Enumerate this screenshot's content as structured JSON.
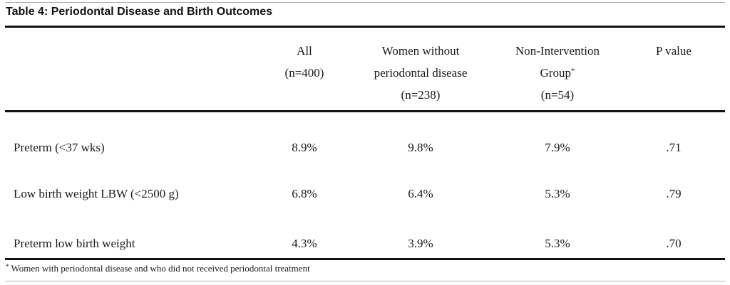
{
  "table": {
    "title": "Table 4: Periodontal Disease and Birth Outcomes",
    "columns": [
      {
        "lines": [
          "All",
          "(n=400)"
        ],
        "marker": ""
      },
      {
        "lines": [
          "Women without",
          "periodontal disease",
          "(n=238)"
        ],
        "marker": ""
      },
      {
        "lines": [
          "Non-Intervention",
          "Group",
          "(n=54)"
        ],
        "marker": "*"
      },
      {
        "lines": [
          "P value"
        ],
        "marker": ""
      }
    ],
    "rows": [
      {
        "label": "Preterm (<37 wks)",
        "all": "8.9%",
        "women_without": "9.8%",
        "non_intervention": "7.9%",
        "p_value": ".71"
      },
      {
        "label": "Low birth weight LBW (<2500 g)",
        "all": "6.8%",
        "women_without": "6.4%",
        "non_intervention": "5.3%",
        "p_value": ".79"
      },
      {
        "label": "Preterm low birth weight",
        "all": "4.3%",
        "women_without": "3.9%",
        "non_intervention": "5.3%",
        "p_value": ".70"
      }
    ],
    "footnote": {
      "marker": "*",
      "text": " Women with periodontal disease and who did not received periodontal treatment"
    }
  }
}
